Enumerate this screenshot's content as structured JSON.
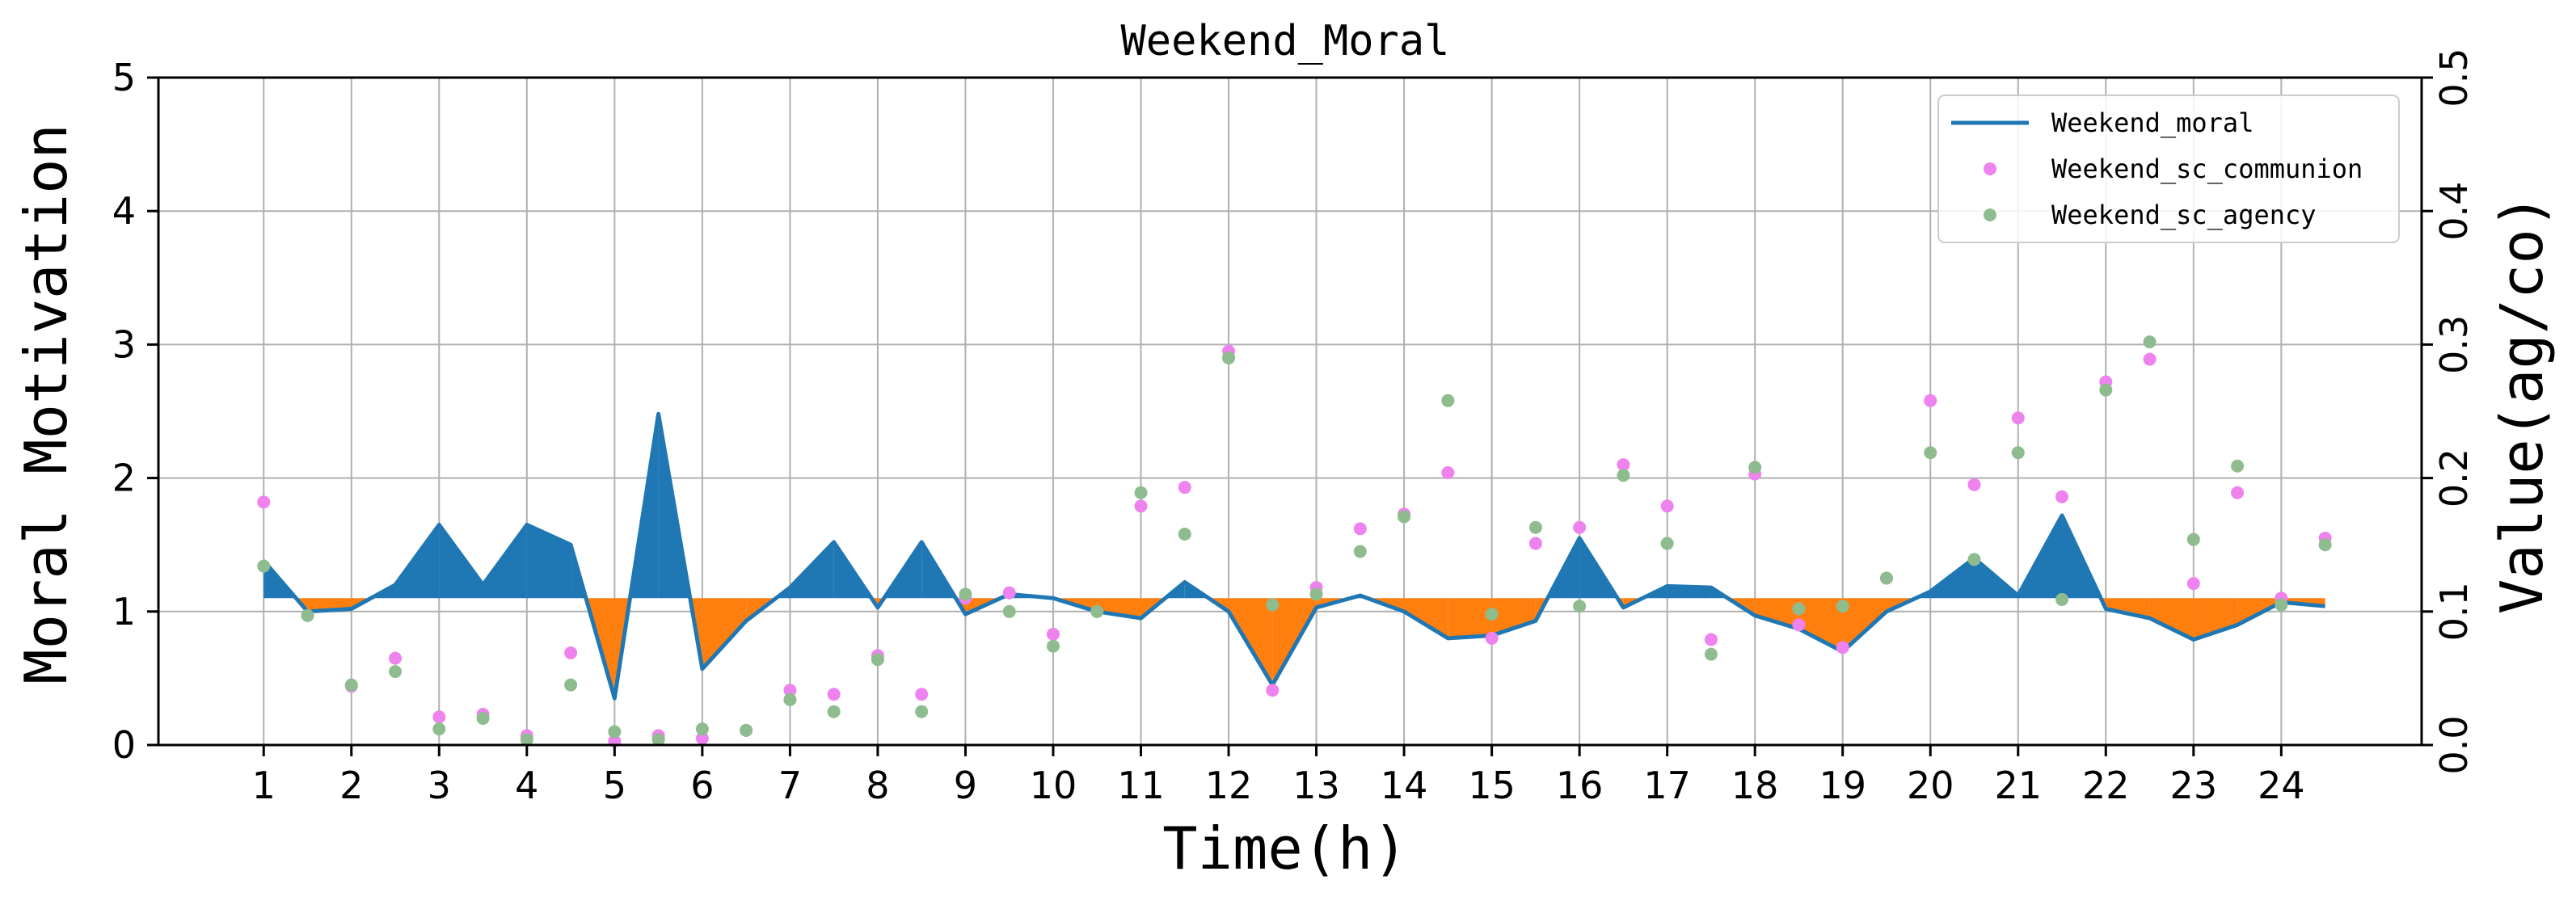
{
  "chart_data": {
    "type": "line",
    "title": "Weekend_Moral",
    "xlabel": "Time(h)",
    "ylabel": "Moral Motivation",
    "ylabel_right": "Value(ag/co)",
    "xlim": [
      -0.2,
      25.6
    ],
    "ylim": [
      0,
      5
    ],
    "ylim_right": [
      0,
      0.5
    ],
    "x_ticks": [
      1,
      2,
      3,
      4,
      5,
      6,
      7,
      8,
      9,
      10,
      11,
      12,
      13,
      14,
      15,
      16,
      17,
      18,
      19,
      20,
      21,
      22,
      23,
      24
    ],
    "y_ticks": [
      "0",
      "1",
      "2",
      "3",
      "4",
      "5"
    ],
    "y_ticks_right": [
      "0.0",
      "0.1",
      "0.2",
      "0.3",
      "0.4",
      "0.5"
    ],
    "grid": true,
    "legend_position": "top-right",
    "baseline": 1.1,
    "colors": {
      "line": "#1f77b4",
      "fill_above": "#1f77b4",
      "fill_below": "#ff7f0e",
      "communion": "#ee82ee",
      "agency": "#8fbc8f",
      "grid": "#b0b0b0"
    },
    "series": [
      {
        "name": "Weekend_moral",
        "kind": "line",
        "x": [
          1,
          1.5,
          2,
          2.5,
          3,
          3.5,
          4,
          4.5,
          5,
          5.5,
          6,
          6.5,
          7,
          7.5,
          8,
          8.5,
          9,
          9.5,
          10,
          10.5,
          11,
          11.5,
          12,
          12.5,
          13,
          13.5,
          14,
          14.5,
          15,
          15.5,
          16,
          16.5,
          17,
          17.5,
          18,
          18.5,
          19,
          19.5,
          20,
          20.5,
          21,
          21.5,
          22,
          22.5,
          23,
          23.5,
          24,
          24.5
        ],
        "y": [
          1.38,
          1.0,
          1.02,
          1.2,
          1.65,
          1.2,
          1.65,
          1.5,
          0.35,
          2.48,
          0.57,
          0.93,
          1.18,
          1.52,
          1.03,
          1.52,
          0.98,
          1.13,
          1.1,
          1.0,
          0.95,
          1.22,
          1.0,
          0.45,
          1.03,
          1.12,
          1.0,
          0.8,
          0.82,
          0.93,
          1.55,
          1.03,
          1.19,
          1.18,
          0.97,
          0.87,
          0.7,
          1.0,
          1.15,
          1.4,
          1.12,
          1.72,
          1.02,
          0.95,
          0.79,
          0.9,
          1.07,
          1.04
        ]
      },
      {
        "name": "Weekend_sc_communion",
        "kind": "scatter",
        "axis": "right",
        "x": [
          1,
          1.5,
          2,
          2.5,
          3,
          3.5,
          4,
          4.5,
          5,
          5.5,
          6,
          6.5,
          7,
          7.5,
          8,
          8.5,
          9,
          9.5,
          10,
          10.5,
          11,
          11.5,
          12,
          12.5,
          13,
          13.5,
          14,
          14.5,
          15,
          15.5,
          16,
          16.5,
          17,
          17.5,
          18,
          18.5,
          19,
          19.5,
          20,
          20.5,
          21,
          21.5,
          22,
          22.5,
          23,
          23.5,
          24,
          24.5
        ],
        "y": [
          0.182,
          0.097,
          0.044,
          0.065,
          0.021,
          0.023,
          0.007,
          0.069,
          0.003,
          0.007,
          0.005,
          0.011,
          0.041,
          0.038,
          0.067,
          0.038,
          0.11,
          0.114,
          0.083,
          0.1,
          0.179,
          0.193,
          0.295,
          0.041,
          0.118,
          0.162,
          0.173,
          0.204,
          0.08,
          0.151,
          0.163,
          0.21,
          0.179,
          0.079,
          0.203,
          0.09,
          0.073,
          0.125,
          0.258,
          0.195,
          0.245,
          0.186,
          0.272,
          0.289,
          0.121,
          0.189,
          0.11,
          0.155
        ]
      },
      {
        "name": "Weekend_sc_agency",
        "kind": "scatter",
        "axis": "right",
        "x": [
          1,
          1.5,
          2,
          2.5,
          3,
          3.5,
          4,
          4.5,
          5,
          5.5,
          6,
          6.5,
          7,
          7.5,
          8,
          8.5,
          9,
          9.5,
          10,
          10.5,
          11,
          11.5,
          12,
          12.5,
          13,
          13.5,
          14,
          14.5,
          15,
          15.5,
          16,
          16.5,
          17,
          17.5,
          18,
          18.5,
          19,
          19.5,
          20,
          20.5,
          21,
          21.5,
          22,
          22.5,
          23,
          23.5,
          24,
          24.5
        ],
        "y": [
          0.134,
          0.097,
          0.045,
          0.055,
          0.012,
          0.02,
          0.004,
          0.045,
          0.01,
          0.004,
          0.012,
          0.011,
          0.034,
          0.025,
          0.064,
          0.025,
          0.113,
          0.1,
          0.074,
          0.1,
          0.189,
          0.158,
          0.29,
          0.105,
          0.113,
          0.145,
          0.171,
          0.258,
          0.098,
          0.163,
          0.104,
          0.202,
          0.151,
          0.068,
          0.208,
          0.102,
          0.104,
          0.125,
          0.219,
          0.139,
          0.219,
          0.109,
          0.266,
          0.302,
          0.154,
          0.209,
          0.105,
          0.15
        ]
      }
    ]
  }
}
